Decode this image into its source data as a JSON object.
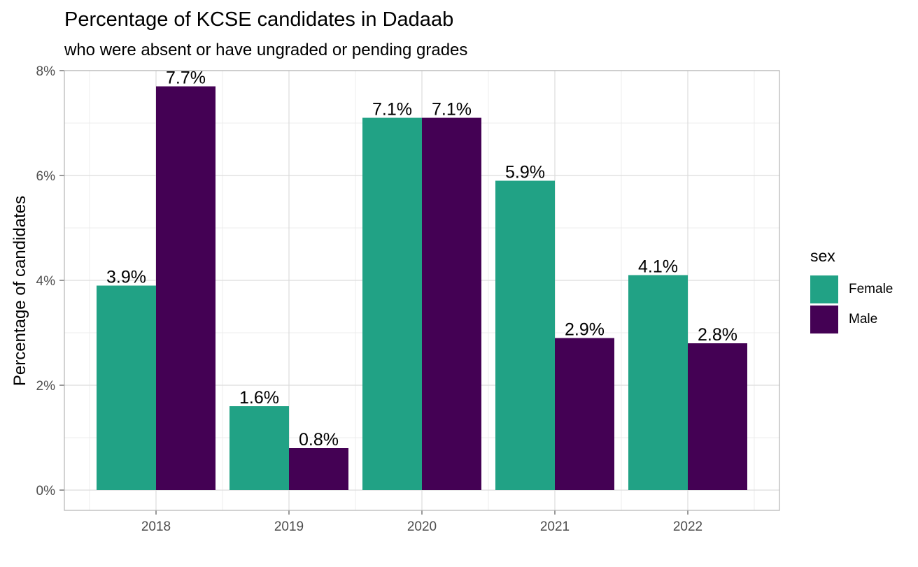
{
  "chart_data": {
    "type": "bar",
    "title": "Percentage of KCSE candidates in Dadaab",
    "subtitle": "who were absent or have ungraded or pending grades",
    "xlabel": "",
    "ylabel": "Percentage of candidates",
    "categories": [
      "2018",
      "2019",
      "2020",
      "2021",
      "2022"
    ],
    "series": [
      {
        "name": "Female",
        "color": "#21a285",
        "values": [
          3.9,
          1.6,
          7.1,
          5.9,
          4.1
        ]
      },
      {
        "name": "Male",
        "color": "#440154",
        "values": [
          7.7,
          0.8,
          7.1,
          2.9,
          2.8
        ]
      }
    ],
    "data_labels": {
      "Female": [
        "3.9%",
        "1.6%",
        "7.1%",
        "5.9%",
        "4.1%"
      ],
      "Male": [
        "7.7%",
        "0.8%",
        "7.1%",
        "2.9%",
        "2.8%"
      ]
    },
    "ylim": [
      0,
      8
    ],
    "y_ticks": [
      0,
      2,
      4,
      6,
      8
    ],
    "y_tick_labels": [
      "0%",
      "2%",
      "4%",
      "6%",
      "8%"
    ],
    "grid": true,
    "legend": {
      "title": "sex",
      "position": "right"
    }
  }
}
